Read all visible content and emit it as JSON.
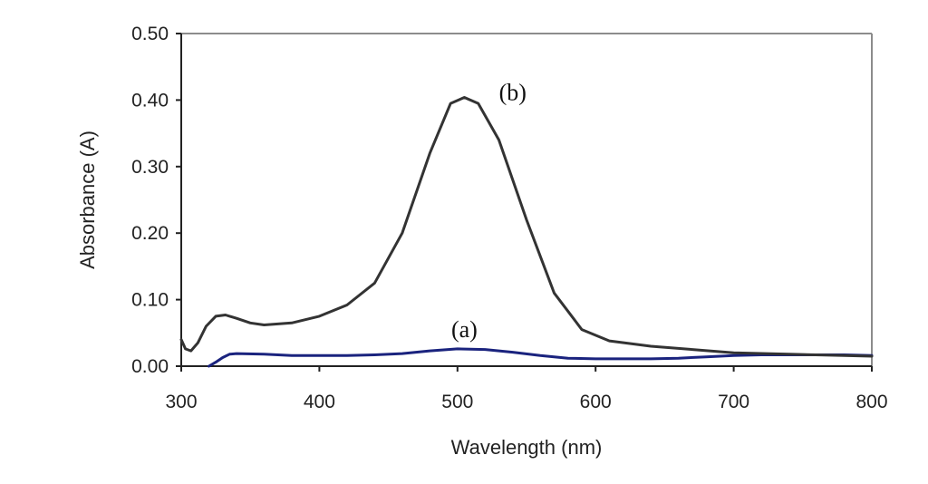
{
  "chart_data": {
    "type": "line",
    "title": "",
    "xlabel": "Wavelength (nm)",
    "ylabel": "Absorbance (A)",
    "xlim": [
      300,
      800
    ],
    "ylim": [
      0,
      0.5
    ],
    "x_ticks": [
      "300",
      "400",
      "500",
      "600",
      "700",
      "800"
    ],
    "y_ticks": [
      "0.00",
      "0.10",
      "0.20",
      "0.30",
      "0.40",
      "0.50"
    ],
    "grid": false,
    "legend": "none",
    "series": [
      {
        "name": "(a)",
        "color": "#1a237e",
        "points": [
          [
            320,
            0.0
          ],
          [
            325,
            0.006
          ],
          [
            330,
            0.013
          ],
          [
            335,
            0.018
          ],
          [
            340,
            0.019
          ],
          [
            360,
            0.018
          ],
          [
            380,
            0.016
          ],
          [
            400,
            0.016
          ],
          [
            420,
            0.016
          ],
          [
            440,
            0.017
          ],
          [
            460,
            0.019
          ],
          [
            480,
            0.023
          ],
          [
            500,
            0.026
          ],
          [
            520,
            0.025
          ],
          [
            540,
            0.021
          ],
          [
            560,
            0.016
          ],
          [
            580,
            0.012
          ],
          [
            600,
            0.011
          ],
          [
            620,
            0.011
          ],
          [
            640,
            0.011
          ],
          [
            660,
            0.012
          ],
          [
            680,
            0.014
          ],
          [
            700,
            0.016
          ],
          [
            720,
            0.017
          ],
          [
            740,
            0.017
          ],
          [
            760,
            0.017
          ],
          [
            780,
            0.017
          ],
          [
            800,
            0.016
          ]
        ]
      },
      {
        "name": "(b)",
        "color": "#333333",
        "points": [
          [
            300,
            0.04
          ],
          [
            303,
            0.026
          ],
          [
            307,
            0.023
          ],
          [
            312,
            0.035
          ],
          [
            318,
            0.06
          ],
          [
            325,
            0.075
          ],
          [
            332,
            0.077
          ],
          [
            340,
            0.072
          ],
          [
            350,
            0.065
          ],
          [
            360,
            0.062
          ],
          [
            380,
            0.065
          ],
          [
            400,
            0.075
          ],
          [
            420,
            0.092
          ],
          [
            440,
            0.125
          ],
          [
            460,
            0.2
          ],
          [
            480,
            0.32
          ],
          [
            495,
            0.395
          ],
          [
            505,
            0.404
          ],
          [
            515,
            0.395
          ],
          [
            530,
            0.34
          ],
          [
            550,
            0.22
          ],
          [
            570,
            0.11
          ],
          [
            590,
            0.055
          ],
          [
            610,
            0.038
          ],
          [
            640,
            0.03
          ],
          [
            670,
            0.025
          ],
          [
            700,
            0.02
          ],
          [
            740,
            0.018
          ],
          [
            780,
            0.016
          ],
          [
            800,
            0.015
          ]
        ]
      }
    ]
  }
}
